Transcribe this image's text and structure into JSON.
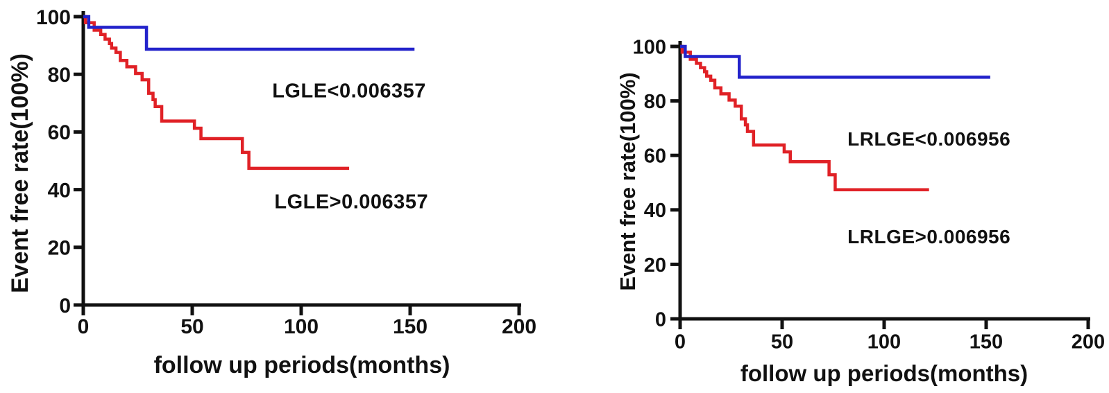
{
  "page": {
    "background": "#ffffff",
    "text_color": "#111111"
  },
  "chart_data": [
    {
      "type": "line",
      "subtype": "kaplan-meier-step",
      "title": "",
      "xlabel": "follow up periods(months)",
      "ylabel": "Event free rate(100%)",
      "xlim": [
        0,
        200
      ],
      "ylim": [
        0,
        100
      ],
      "xticks": [
        0,
        50,
        100,
        150,
        200
      ],
      "yticks": [
        0,
        20,
        40,
        60,
        80,
        100
      ],
      "grid": false,
      "legend_position": "none",
      "axis_color": "#111111",
      "series": [
        {
          "name": "LGLE>0.006357",
          "color": "#e02126",
          "points": [
            [
              0,
              100
            ],
            [
              1,
              97.9
            ],
            [
              5,
              95.3
            ],
            [
              8,
              93.8
            ],
            [
              10,
              92.2
            ],
            [
              12,
              90.7
            ],
            [
              13,
              89.1
            ],
            [
              15,
              87.6
            ],
            [
              17,
              84.8
            ],
            [
              20,
              82.6
            ],
            [
              24,
              80.3
            ],
            [
              27,
              78.1
            ],
            [
              30,
              73.4
            ],
            [
              32,
              71.2
            ],
            [
              33,
              68.8
            ],
            [
              36,
              63.8
            ],
            [
              51,
              61.3
            ],
            [
              54,
              57.7
            ],
            [
              73,
              52.9
            ],
            [
              76,
              47.4
            ],
            [
              122,
              47.4
            ]
          ]
        },
        {
          "name": "LGLE<0.006357",
          "color": "#2323cb",
          "points": [
            [
              0,
              100
            ],
            [
              2.5,
              96.3
            ],
            [
              29,
              88.7
            ],
            [
              152,
              88.7
            ]
          ]
        }
      ],
      "annotations": [
        {
          "text": "LGLE<0.006357",
          "x": 122,
          "y": 74,
          "color": "#111111"
        },
        {
          "text": "LGLE>0.006357",
          "x": 123,
          "y": 35.5,
          "color": "#111111"
        }
      ]
    },
    {
      "type": "line",
      "subtype": "kaplan-meier-step",
      "title": "",
      "xlabel": "follow up periods(months)",
      "ylabel": "Event free rate(100%)",
      "xlim": [
        0,
        200
      ],
      "ylim": [
        0,
        100
      ],
      "xticks": [
        0,
        50,
        100,
        150,
        200
      ],
      "yticks": [
        0,
        20,
        40,
        60,
        80,
        100
      ],
      "grid": false,
      "legend_position": "none",
      "axis_color": "#111111",
      "series": [
        {
          "name": "LRLGE>0.006956",
          "color": "#e02126",
          "points": [
            [
              0,
              100
            ],
            [
              1,
              97.9
            ],
            [
              5,
              95.3
            ],
            [
              8,
              93.8
            ],
            [
              10,
              92.2
            ],
            [
              12,
              90.7
            ],
            [
              13,
              89.1
            ],
            [
              15,
              87.6
            ],
            [
              17,
              84.8
            ],
            [
              20,
              82.6
            ],
            [
              24,
              80.3
            ],
            [
              27,
              78.1
            ],
            [
              30,
              73.4
            ],
            [
              32,
              71.2
            ],
            [
              33,
              68.8
            ],
            [
              36,
              63.8
            ],
            [
              51,
              61.3
            ],
            [
              54,
              57.7
            ],
            [
              73,
              52.9
            ],
            [
              76,
              47.4
            ],
            [
              122,
              47.4
            ]
          ]
        },
        {
          "name": "LRLGE<0.006956",
          "color": "#2323cb",
          "points": [
            [
              0,
              100
            ],
            [
              2.5,
              96.3
            ],
            [
              29,
              88.7
            ],
            [
              152,
              88.7
            ]
          ]
        }
      ],
      "annotations": [
        {
          "text": "LRLGE<0.006956",
          "x": 122,
          "y": 66,
          "color": "#111111"
        },
        {
          "text": "LRLGE>0.006956",
          "x": 122,
          "y": 30,
          "color": "#111111"
        }
      ]
    }
  ]
}
